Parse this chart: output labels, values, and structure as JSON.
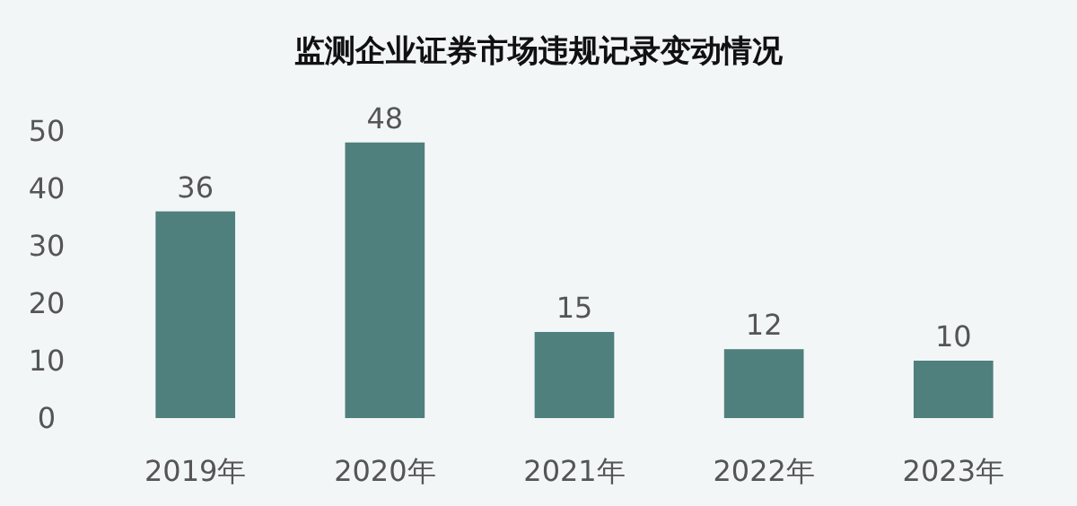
{
  "chart_data": {
    "type": "bar",
    "title": "监测企业证券市场违规记录变动情况",
    "categories": [
      "2019年",
      "2020年",
      "2021年",
      "2022年",
      "2023年"
    ],
    "values": [
      36,
      48,
      15,
      12,
      10
    ],
    "color": "#4f807d",
    "ylim": [
      0,
      50
    ],
    "yticks": [
      0,
      10,
      20,
      30,
      40,
      50
    ],
    "data_labels": true
  }
}
